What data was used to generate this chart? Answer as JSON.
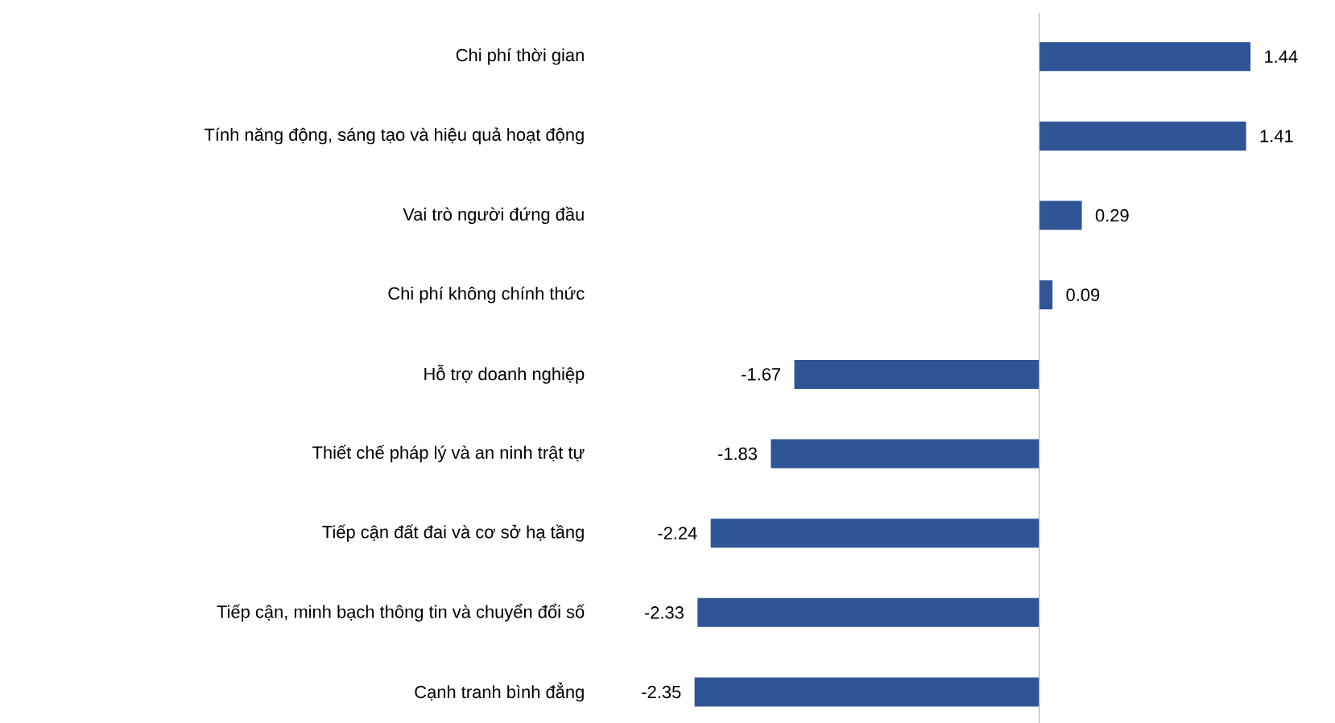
{
  "chart_data": {
    "type": "bar",
    "orientation": "horizontal",
    "data_labels": true,
    "color": "#2f5597",
    "categories": [
      "Chi phí thời gian",
      "Tính năng động, sáng tạo và hiệu quả hoạt động",
      "Vai trò người đứng đầu",
      "Chi phí không chính thức",
      "Hỗ trợ doanh nghiệp",
      "Thiết chế pháp lý và an ninh trật tự",
      "Tiếp cận đất đai và cơ sở hạ tầng",
      "Tiếp cận, minh bạch thông tin và chuyển đổi số",
      "Cạnh tranh bình đẳng"
    ],
    "values": [
      1.44,
      1.41,
      0.29,
      0.09,
      -1.67,
      -1.83,
      -2.24,
      -2.33,
      -2.35
    ]
  }
}
